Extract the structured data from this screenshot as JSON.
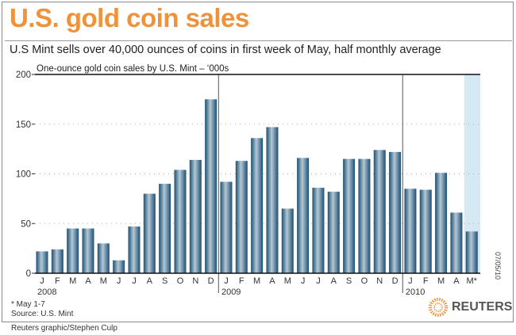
{
  "title": "U.S. gold coin sales",
  "subtitle": "U.S Mint sells over 40,000 ounces of coins in first week of May, half monthly average",
  "footnote": "* May 1-7",
  "source": "Source: U.S. Mint",
  "credit": "Reuters graphic/Stephen Culp",
  "date_stamp": "07/05/10",
  "logo_text": "REUTERS",
  "colors": {
    "title": "#f0923a",
    "bar": "#2e5f82",
    "highlight": "#d6e8f3",
    "logo": "#f0923a"
  },
  "chart_data": {
    "type": "bar",
    "title": "One-ounce gold coin sales by U.S. Mint – ‘000s",
    "ylim": [
      0,
      200
    ],
    "yticks": [
      0,
      50,
      100,
      150,
      200
    ],
    "grid": true,
    "categories": [
      "J",
      "F",
      "M",
      "A",
      "M",
      "J",
      "J",
      "A",
      "S",
      "O",
      "N",
      "D",
      "J",
      "F",
      "M",
      "A",
      "M",
      "J",
      "J",
      "A",
      "S",
      "O",
      "N",
      "D",
      "J",
      "F",
      "M",
      "A",
      "M*"
    ],
    "years": [
      {
        "label": "2008",
        "start_index": 0
      },
      {
        "label": "2009",
        "start_index": 12
      },
      {
        "label": "2010",
        "start_index": 24
      }
    ],
    "values": [
      22,
      24,
      45,
      45,
      30,
      13,
      47,
      80,
      90,
      104,
      114,
      175,
      92,
      113,
      136,
      147,
      65,
      116,
      86,
      82,
      115,
      115,
      124,
      122,
      85,
      84,
      101,
      61,
      42
    ],
    "highlighted_index": 28
  }
}
